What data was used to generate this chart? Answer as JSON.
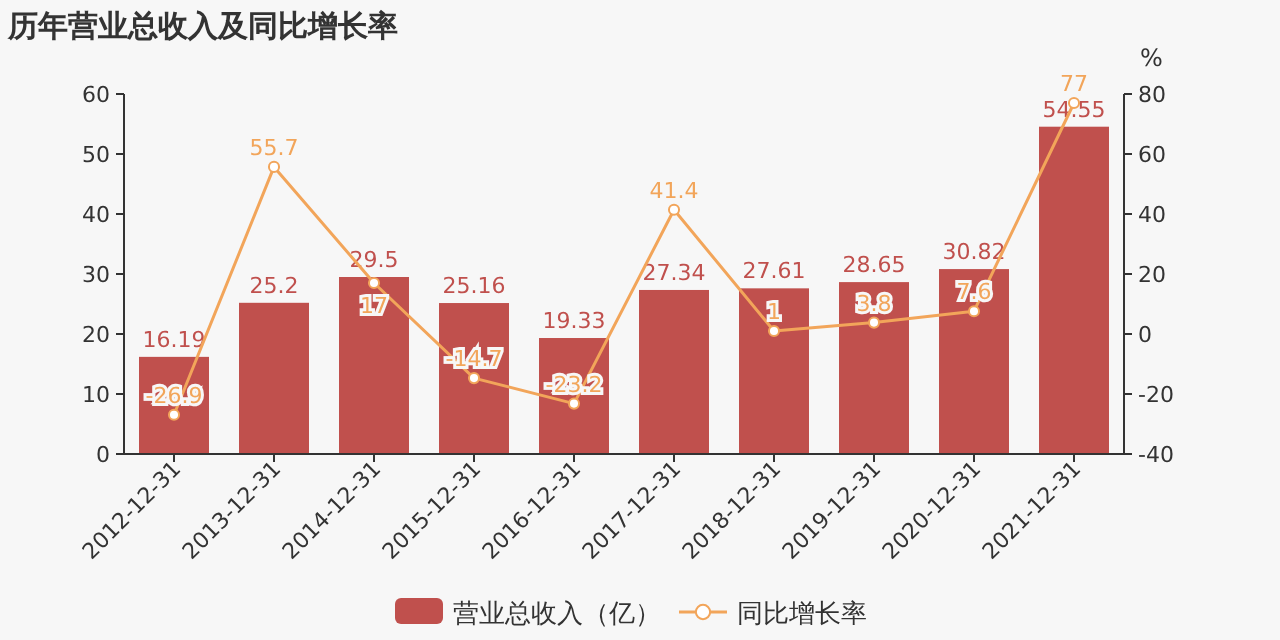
{
  "chart_data": {
    "type": "bar",
    "title": "历年营业总收入及同比增长率",
    "y2label": "%",
    "categories": [
      "2012-12-31",
      "2013-12-31",
      "2014-12-31",
      "2015-12-31",
      "2016-12-31",
      "2017-12-31",
      "2018-12-31",
      "2019-12-31",
      "2020-12-31",
      "2021-12-31"
    ],
    "series": [
      {
        "name": "营业总收入（亿）",
        "color": "#c0504d",
        "values": [
          16.19,
          25.2,
          29.5,
          25.16,
          19.33,
          27.34,
          27.61,
          28.65,
          30.82,
          54.55
        ]
      },
      {
        "name": "同比增长率",
        "type": "line",
        "axis": "y2",
        "color": "#f2a55a",
        "values": [
          -26.9,
          55.7,
          17,
          -14.7,
          -23.2,
          41.4,
          1,
          3.8,
          7.6,
          77
        ]
      }
    ],
    "ylim": [
      0,
      60
    ],
    "yticks": [
      0,
      10,
      20,
      30,
      40,
      50,
      60
    ],
    "y2lim": [
      -40,
      80
    ],
    "y2ticks": [
      -40,
      -20,
      0,
      20,
      40,
      60,
      80
    ],
    "data_labels": true,
    "legend": "bottom",
    "marker": "circle",
    "grid": false
  }
}
